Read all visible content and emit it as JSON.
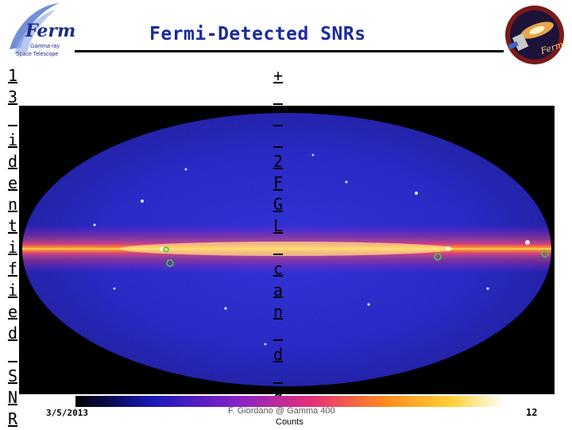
{
  "slide": {
    "title": "Fermi-Detected SNRs",
    "left_column_chars": [
      "1",
      "3",
      "",
      "i",
      "d",
      "e",
      "n",
      "t",
      "i",
      "f",
      "i",
      "e",
      "d",
      "",
      "S",
      "N",
      "R"
    ],
    "center_column_chars": [
      "+",
      "",
      "",
      "",
      "2",
      "F",
      "G",
      "L",
      "",
      "c",
      "a",
      "n",
      "",
      "d",
      "",
      "g"
    ],
    "footer": {
      "date": "3/5/2013",
      "credit": "F. Giordano @ Gamma 400",
      "page": "12"
    },
    "colorbar": {
      "label": "Counts"
    }
  },
  "logos": {
    "left": {
      "name": "fermi-logo",
      "text": "Fermi",
      "subtitle": "Gamma-ray Space Telescope"
    },
    "right": {
      "name": "fermi-mission-patch",
      "text": "Fermi"
    }
  },
  "colors": {
    "title": "#1a2a9c",
    "sky_background": "#1b1bb0",
    "galactic_plane": "#ffd040"
  }
}
